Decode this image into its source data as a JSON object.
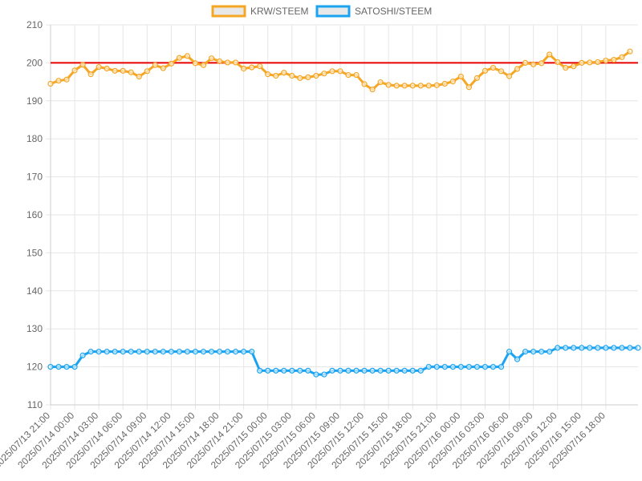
{
  "chart_data": {
    "type": "line",
    "x_start": "2025/07/13 21:00",
    "x_step_hours": 1,
    "x_tick_labels": [
      "2025/07/13 21:00",
      "2025/07/14 00:00",
      "2025/07/14 03:00",
      "2025/07/14 06:00",
      "2025/07/14 09:00",
      "2025/07/14 12:00",
      "2025/07/14 15:00",
      "2025/07/14 18:00",
      "2025/07/14 21:00",
      "2025/07/15 00:00",
      "2025/07/15 03:00",
      "2025/07/15 06:00",
      "2025/07/15 09:00",
      "2025/07/15 12:00",
      "2025/07/15 15:00",
      "2025/07/15 18:00",
      "2025/07/15 21:00",
      "2025/07/16 00:00",
      "2025/07/16 03:00",
      "2025/07/16 06:00",
      "2025/07/16 09:00",
      "2025/07/16 12:00",
      "2025/07/16 15:00",
      "2025/07/16 18:00"
    ],
    "y_ticks": [
      110,
      120,
      130,
      140,
      150,
      160,
      170,
      180,
      190,
      200,
      210
    ],
    "ylim": [
      110,
      210
    ],
    "grid": true,
    "legend_position": "top-center",
    "reference_line": {
      "value": 200,
      "color": "#e60000"
    },
    "series": [
      {
        "name": "KRW/STEEM",
        "color": "#f5a623",
        "values": [
          194.5,
          195.3,
          195.6,
          198.0,
          199.5,
          197.0,
          198.9,
          198.5,
          197.9,
          197.9,
          197.5,
          196.4,
          197.8,
          199.4,
          198.6,
          199.8,
          201.3,
          201.8,
          199.9,
          199.4,
          201.2,
          200.4,
          200.1,
          200.1,
          198.5,
          198.8,
          199.1,
          197.0,
          196.6,
          197.4,
          196.6,
          196.0,
          196.2,
          196.6,
          197.2,
          197.8,
          197.8,
          196.8,
          196.8,
          194.4,
          193.0,
          194.9,
          194.2,
          194.0,
          194.0,
          194.0,
          194.0,
          194.0,
          194.1,
          194.5,
          195.1,
          196.4,
          193.6,
          196.0,
          197.9,
          198.7,
          197.8,
          196.5,
          198.4,
          200.0,
          199.6,
          199.9,
          202.2,
          200.2,
          198.7,
          199.1,
          200.0,
          200.1,
          200.2,
          200.6,
          200.8,
          201.5,
          203.0
        ]
      },
      {
        "name": "SATOSHI/STEEM",
        "color": "#1aa3f0",
        "values": [
          120,
          120,
          120,
          120,
          123,
          124,
          124,
          124,
          124,
          124,
          124,
          124,
          124,
          124,
          124,
          124,
          124,
          124,
          124,
          124,
          124,
          124,
          124,
          124,
          124,
          124,
          119,
          119,
          119,
          119,
          119,
          119,
          119,
          118,
          118,
          119,
          119,
          119,
          119,
          119,
          119,
          119,
          119,
          119,
          119,
          119,
          119,
          120,
          120,
          120,
          120,
          120,
          120,
          120,
          120,
          120,
          120,
          124,
          122,
          124,
          124,
          124,
          124,
          125,
          125,
          125,
          125,
          125,
          125,
          125,
          125,
          125,
          125,
          125
        ]
      }
    ]
  }
}
